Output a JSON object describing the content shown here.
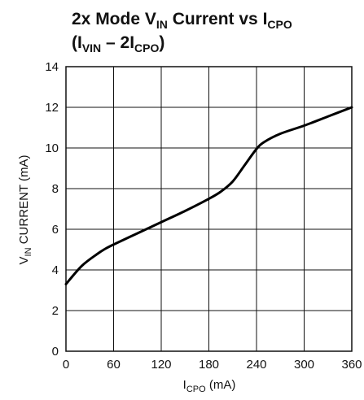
{
  "chart_data": {
    "type": "line",
    "title": {
      "line1": {
        "a": "2x Mode V",
        "a_sub": "IN",
        "b": " Current vs I",
        "b_sub": "CPO"
      },
      "line2": {
        "a": "(I",
        "a_sub": "VIN",
        "b": " – 2I",
        "b_sub": "CPO",
        "c": ")"
      }
    },
    "xlabel": {
      "main": "I",
      "sub": "CPO",
      "rest": " (mA)"
    },
    "ylabel": {
      "main": "V",
      "sub": "IN",
      "rest": " CURRENT (mA)"
    },
    "xlim": [
      0,
      360
    ],
    "ylim": [
      0,
      14
    ],
    "x_ticks": [
      0,
      60,
      120,
      180,
      240,
      300,
      360
    ],
    "y_ticks": [
      0,
      2,
      4,
      6,
      8,
      10,
      12,
      14
    ],
    "grid": true,
    "series": [
      {
        "x": [
          0,
          20,
          40,
          50,
          60,
          90,
          120,
          150,
          180,
          195,
          210,
          225,
          240,
          250,
          270,
          300,
          330,
          360
        ],
        "y": [
          3.3,
          4.2,
          4.8,
          5.05,
          5.25,
          5.8,
          6.35,
          6.9,
          7.5,
          7.85,
          8.35,
          9.15,
          9.95,
          10.3,
          10.7,
          11.1,
          11.55,
          12.0
        ]
      }
    ]
  }
}
